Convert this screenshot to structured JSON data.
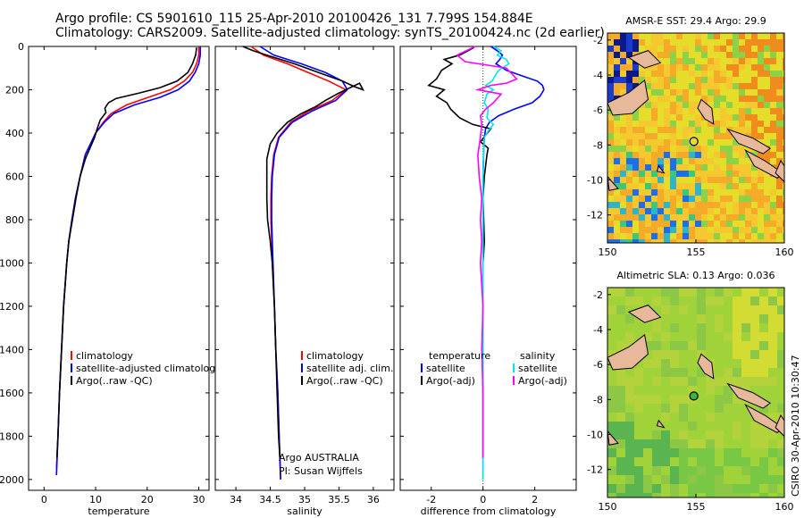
{
  "header": {
    "line1": "Argo profile: CS 5901610_115 25-Apr-2010 20100426_131 7.799S 154.884E",
    "line2": "Climatology: CARS2009. Satellite-adjusted climatology: synTS_20100424.nc (2d earlier)"
  },
  "credit": "CSIRO 30-Apr-2010 10:30:47",
  "colors": {
    "climatology": "#ff0000",
    "satellite": "#0000ff",
    "argo": "#000000",
    "salinity_satellite": "#00e5ee",
    "salinity_argo": "#ff00ff",
    "land": "#e8b89a",
    "sea_background_sst": "#f5c22a",
    "sea_background_sla": "#9fd23a"
  },
  "chart_data": [
    {
      "type": "line",
      "id": "temperature",
      "xlabel": "temperature",
      "ylabel": "",
      "xlim": [
        -3,
        32
      ],
      "ylim": [
        2050,
        0
      ],
      "xticks": [
        0,
        10,
        20,
        30
      ],
      "yticks": [
        0,
        200,
        400,
        600,
        800,
        1000,
        1200,
        1400,
        1600,
        1800,
        2000
      ],
      "legend": [
        "climatology",
        "satellite-adjusted climatolog",
        "Argo(..raw -QC)"
      ],
      "series": [
        {
          "name": "climatology",
          "color": "#ff0000",
          "points": [
            [
              30,
              0
            ],
            [
              30,
              40
            ],
            [
              29.6,
              80
            ],
            [
              28.8,
              120
            ],
            [
              27.2,
              160
            ],
            [
              24.5,
              200
            ],
            [
              20.2,
              235
            ],
            [
              16,
              270
            ],
            [
              13,
              310
            ],
            [
              11.5,
              350
            ],
            [
              10,
              400
            ],
            [
              9,
              450
            ],
            [
              8,
              500
            ],
            [
              7,
              600
            ],
            [
              6.1,
              700
            ],
            [
              5.4,
              800
            ],
            [
              4.8,
              900
            ],
            [
              4.4,
              1000
            ],
            [
              3.8,
              1200
            ],
            [
              3.4,
              1400
            ],
            [
              3,
              1600
            ],
            [
              2.7,
              1800
            ],
            [
              2.4,
              1950
            ]
          ]
        },
        {
          "name": "satellite-adjusted climatology",
          "color": "#0000ff",
          "points": [
            [
              30.3,
              0
            ],
            [
              30.3,
              40
            ],
            [
              30,
              80
            ],
            [
              29.3,
              120
            ],
            [
              28.2,
              160
            ],
            [
              26,
              200
            ],
            [
              22.5,
              235
            ],
            [
              17.5,
              270
            ],
            [
              13.5,
              310
            ],
            [
              11.7,
              350
            ],
            [
              10,
              400
            ],
            [
              9,
              450
            ],
            [
              8,
              500
            ],
            [
              7,
              600
            ],
            [
              6.1,
              700
            ],
            [
              5.4,
              800
            ],
            [
              4.8,
              900
            ],
            [
              4.4,
              1000
            ],
            [
              3.8,
              1200
            ],
            [
              3.4,
              1400
            ],
            [
              3,
              1600
            ],
            [
              2.7,
              1800
            ],
            [
              2.4,
              1980
            ]
          ]
        },
        {
          "name": "Argo(..raw -QC)",
          "color": "#000000",
          "points": [
            [
              29.6,
              5
            ],
            [
              29.4,
              40
            ],
            [
              28.8,
              80
            ],
            [
              27.9,
              120
            ],
            [
              25.8,
              160
            ],
            [
              22.5,
              190
            ],
            [
              18.5,
              215
            ],
            [
              14,
              240
            ],
            [
              12.5,
              260
            ],
            [
              11.8,
              285
            ],
            [
              12,
              305
            ],
            [
              10.9,
              340
            ],
            [
              10.3,
              380
            ],
            [
              9.8,
              420
            ],
            [
              8.9,
              470
            ],
            [
              8,
              520
            ],
            [
              7,
              600
            ],
            [
              6.2,
              700
            ],
            [
              5.5,
              800
            ],
            [
              4.8,
              900
            ],
            [
              4.4,
              1000
            ],
            [
              3.8,
              1200
            ],
            [
              3.4,
              1400
            ],
            [
              3,
              1600
            ],
            [
              2.7,
              1800
            ],
            [
              2.5,
              1900
            ]
          ]
        }
      ]
    },
    {
      "type": "line",
      "id": "salinity",
      "xlabel": "salinity",
      "ylabel": "",
      "xlim": [
        33.7,
        36.3
      ],
      "ylim": [
        2050,
        0
      ],
      "xticks": [
        34,
        34.5,
        35,
        35.5,
        36
      ],
      "legend": [
        "climatology",
        "satellite adj. clim.",
        "Argo(..raw -QC)"
      ],
      "annotations": [
        "Argo AUSTRALIA",
        "PI: Susan Wijffels"
      ],
      "series": [
        {
          "name": "climatology",
          "color": "#ff0000",
          "points": [
            [
              34.22,
              0
            ],
            [
              34.4,
              40
            ],
            [
              34.75,
              80
            ],
            [
              35.05,
              120
            ],
            [
              35.35,
              160
            ],
            [
              35.6,
              200
            ],
            [
              35.4,
              250
            ],
            [
              35.05,
              300
            ],
            [
              34.8,
              350
            ],
            [
              34.62,
              420
            ],
            [
              34.55,
              500
            ],
            [
              34.52,
              600
            ],
            [
              34.51,
              700
            ],
            [
              34.51,
              800
            ],
            [
              34.52,
              900
            ],
            [
              34.53,
              1000
            ],
            [
              34.56,
              1200
            ],
            [
              34.58,
              1400
            ],
            [
              34.61,
              1600
            ],
            [
              34.63,
              1800
            ],
            [
              34.65,
              2000
            ]
          ]
        },
        {
          "name": "satellite adj. clim.",
          "color": "#0000ff",
          "points": [
            [
              34.35,
              0
            ],
            [
              34.55,
              40
            ],
            [
              34.95,
              80
            ],
            [
              35.3,
              120
            ],
            [
              35.55,
              160
            ],
            [
              35.62,
              200
            ],
            [
              35.45,
              250
            ],
            [
              35.1,
              300
            ],
            [
              34.82,
              350
            ],
            [
              34.63,
              420
            ],
            [
              34.56,
              500
            ],
            [
              34.53,
              600
            ],
            [
              34.52,
              700
            ],
            [
              34.52,
              800
            ],
            [
              34.53,
              900
            ],
            [
              34.54,
              1000
            ],
            [
              34.56,
              1200
            ],
            [
              34.58,
              1400
            ],
            [
              34.61,
              1600
            ],
            [
              34.63,
              1800
            ],
            [
              34.65,
              2000
            ]
          ]
        },
        {
          "name": "Argo(..raw -QC)",
          "color": "#000000",
          "points": [
            [
              34.1,
              0
            ],
            [
              34.25,
              20
            ],
            [
              34.45,
              40
            ],
            [
              34.85,
              80
            ],
            [
              35.2,
              120
            ],
            [
              35.55,
              160
            ],
            [
              35.72,
              185
            ],
            [
              35.85,
              200
            ],
            [
              35.8,
              170
            ],
            [
              35.5,
              215
            ],
            [
              35.3,
              250
            ],
            [
              35.15,
              280
            ],
            [
              34.95,
              310
            ],
            [
              34.75,
              350
            ],
            [
              34.6,
              400
            ],
            [
              34.5,
              450
            ],
            [
              34.45,
              520
            ],
            [
              34.45,
              600
            ],
            [
              34.45,
              700
            ],
            [
              34.46,
              800
            ],
            [
              34.5,
              900
            ],
            [
              34.53,
              1000
            ],
            [
              34.56,
              1200
            ],
            [
              34.58,
              1400
            ],
            [
              34.6,
              1600
            ],
            [
              34.62,
              1800
            ],
            [
              34.64,
              1900
            ]
          ]
        }
      ]
    },
    {
      "type": "line",
      "id": "difference",
      "xlabel": "difference from climatology",
      "ylabel": "",
      "xlim": [
        -3.2,
        3.6
      ],
      "ylim": [
        2050,
        0
      ],
      "xticks": [
        -2,
        0,
        2
      ],
      "legend": [
        "temperature",
        "satellite",
        "Argo(-adj)",
        "salinity",
        "satellite",
        "Argo(-adj)"
      ],
      "series": [
        {
          "name": "temperature satellite",
          "color": "#0000ff",
          "points": [
            [
              0.3,
              0
            ],
            [
              0.55,
              20
            ],
            [
              0.75,
              40
            ],
            [
              0.65,
              60
            ],
            [
              0.5,
              80
            ],
            [
              0.9,
              110
            ],
            [
              1.6,
              140
            ],
            [
              2.1,
              160
            ],
            [
              2.3,
              180
            ],
            [
              2.35,
              200
            ],
            [
              2.2,
              230
            ],
            [
              1.9,
              260
            ],
            [
              1.2,
              290
            ],
            [
              0.6,
              320
            ],
            [
              0.25,
              350
            ],
            [
              0.1,
              380
            ],
            [
              0.05,
              420
            ],
            [
              0.02,
              500
            ],
            [
              0,
              600
            ],
            [
              0,
              1000
            ],
            [
              0,
              2000
            ]
          ]
        },
        {
          "name": "temperature Argo(-adj)",
          "color": "#000000",
          "points": [
            [
              -0.35,
              5
            ],
            [
              -0.9,
              40
            ],
            [
              -1.5,
              60
            ],
            [
              -1.2,
              80
            ],
            [
              -1.6,
              110
            ],
            [
              -1.8,
              150
            ],
            [
              -2.1,
              180
            ],
            [
              -1.5,
              200
            ],
            [
              -1.8,
              230
            ],
            [
              -1.4,
              260
            ],
            [
              -1.25,
              290
            ],
            [
              -0.9,
              330
            ],
            [
              -0.4,
              360
            ],
            [
              0.1,
              375
            ],
            [
              0.3,
              380
            ],
            [
              0.1,
              410
            ],
            [
              -0.1,
              440
            ],
            [
              0.2,
              470
            ],
            [
              0.15,
              500
            ],
            [
              0.05,
              600
            ],
            [
              0,
              700
            ],
            [
              0.05,
              900
            ],
            [
              0,
              1000
            ],
            [
              0,
              1400
            ],
            [
              0,
              1900
            ]
          ]
        },
        {
          "name": "salinity satellite",
          "color": "#00e5ee",
          "points": [
            [
              0.4,
              0
            ],
            [
              0.7,
              20
            ],
            [
              0.55,
              40
            ],
            [
              0.9,
              60
            ],
            [
              1.0,
              80
            ],
            [
              0.6,
              110
            ],
            [
              0.45,
              140
            ],
            [
              0.35,
              160
            ],
            [
              0.1,
              180
            ],
            [
              0.4,
              200
            ],
            [
              0.15,
              220
            ],
            [
              0.05,
              260
            ],
            [
              0.2,
              290
            ],
            [
              0.15,
              330
            ],
            [
              0.4,
              360
            ],
            [
              0.2,
              390
            ],
            [
              0.05,
              420
            ],
            [
              0.02,
              500
            ],
            [
              0,
              600
            ],
            [
              0,
              1000
            ],
            [
              0,
              2000
            ]
          ]
        },
        {
          "name": "salinity Argo(-adj)",
          "color": "#ff00ff",
          "points": [
            [
              -0.3,
              0
            ],
            [
              -1.0,
              40
            ],
            [
              -0.7,
              70
            ],
            [
              0.9,
              100
            ],
            [
              1.3,
              150
            ],
            [
              0.9,
              170
            ],
            [
              0.3,
              180
            ],
            [
              -0.2,
              200
            ],
            [
              0.7,
              220
            ],
            [
              0.4,
              260
            ],
            [
              0.1,
              290
            ],
            [
              -0.1,
              320
            ],
            [
              -0.05,
              360
            ],
            [
              -0.1,
              420
            ],
            [
              -0.2,
              500
            ],
            [
              -0.15,
              600
            ],
            [
              -0.05,
              700
            ],
            [
              -0.1,
              800
            ],
            [
              -0.05,
              900
            ],
            [
              -0.1,
              1000
            ],
            [
              0,
              1200
            ],
            [
              -0.05,
              1400
            ],
            [
              0,
              1600
            ],
            [
              0,
              1900
            ]
          ]
        }
      ]
    },
    {
      "type": "heatmap",
      "id": "sst_map",
      "title": "AMSR-E SST: 29.4 Argo: 29.9",
      "xlim": [
        150,
        160
      ],
      "ylim": [
        -13.6,
        -1.6
      ],
      "xticks": [
        150,
        155,
        160
      ],
      "yticks": [
        -2,
        -4,
        -6,
        -8,
        -10,
        -12
      ],
      "marker": {
        "lon": 154.884,
        "lat": -7.799
      }
    },
    {
      "type": "heatmap",
      "id": "sla_map",
      "title": "Altimetric SLA: 0.13 Argo: 0.036",
      "xlim": [
        150,
        160
      ],
      "ylim": [
        -13.6,
        -1.6
      ],
      "xticks": [
        150,
        155,
        160
      ],
      "yticks": [
        -2,
        -4,
        -6,
        -8,
        -10,
        -12
      ],
      "marker": {
        "lon": 154.884,
        "lat": -7.799
      }
    }
  ]
}
